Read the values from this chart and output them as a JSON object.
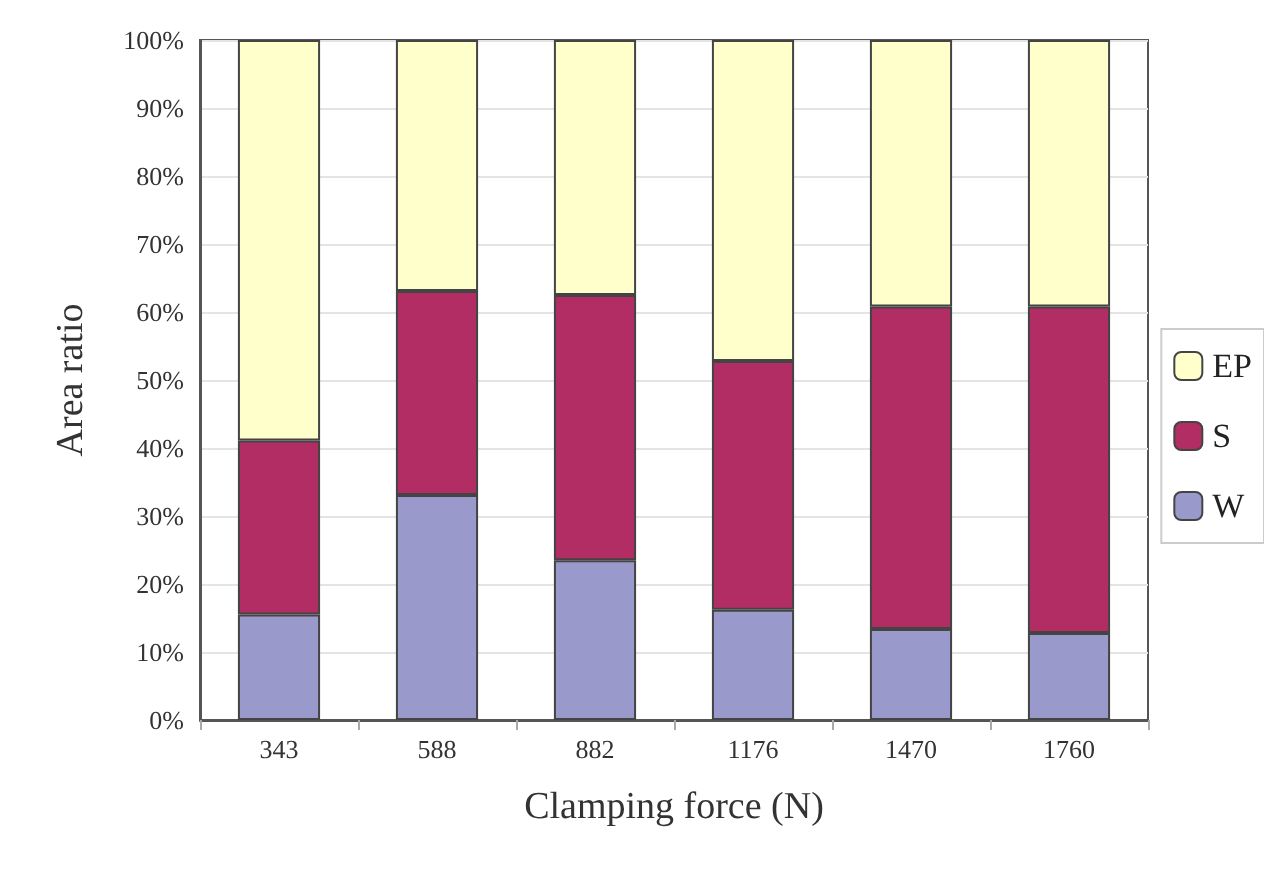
{
  "chart_data": {
    "type": "bar",
    "stacked": true,
    "xlabel": "Clamping force (N)",
    "ylabel": "Area ratio",
    "categories": [
      "343",
      "588",
      "882",
      "1176",
      "1470",
      "1760"
    ],
    "series": [
      {
        "name": "W",
        "color": "#9999cc",
        "values": [
          15.5,
          33.1,
          23.5,
          16.2,
          13.4,
          12.8
        ]
      },
      {
        "name": "S",
        "color": "#b22d63",
        "values": [
          25.6,
          30,
          39,
          36.6,
          47.4,
          48
        ]
      },
      {
        "name": "EP",
        "color": "#ffffcc",
        "values": [
          58.9,
          36.9,
          37.5,
          47.2,
          39.2,
          39.2
        ]
      }
    ],
    "ylim": [
      0,
      100
    ],
    "yticks": [
      {
        "value": 0,
        "label": "0%"
      },
      {
        "value": 10,
        "label": "10%"
      },
      {
        "value": 20,
        "label": "20%"
      },
      {
        "value": 30,
        "label": "30%"
      },
      {
        "value": 40,
        "label": "40%"
      },
      {
        "value": 50,
        "label": "50%"
      },
      {
        "value": 60,
        "label": "60%"
      },
      {
        "value": 70,
        "label": "70%"
      },
      {
        "value": 80,
        "label": "80%"
      },
      {
        "value": 90,
        "label": "90%"
      },
      {
        "value": 100,
        "label": "100%"
      }
    ],
    "grid": "y",
    "legend": "right"
  }
}
